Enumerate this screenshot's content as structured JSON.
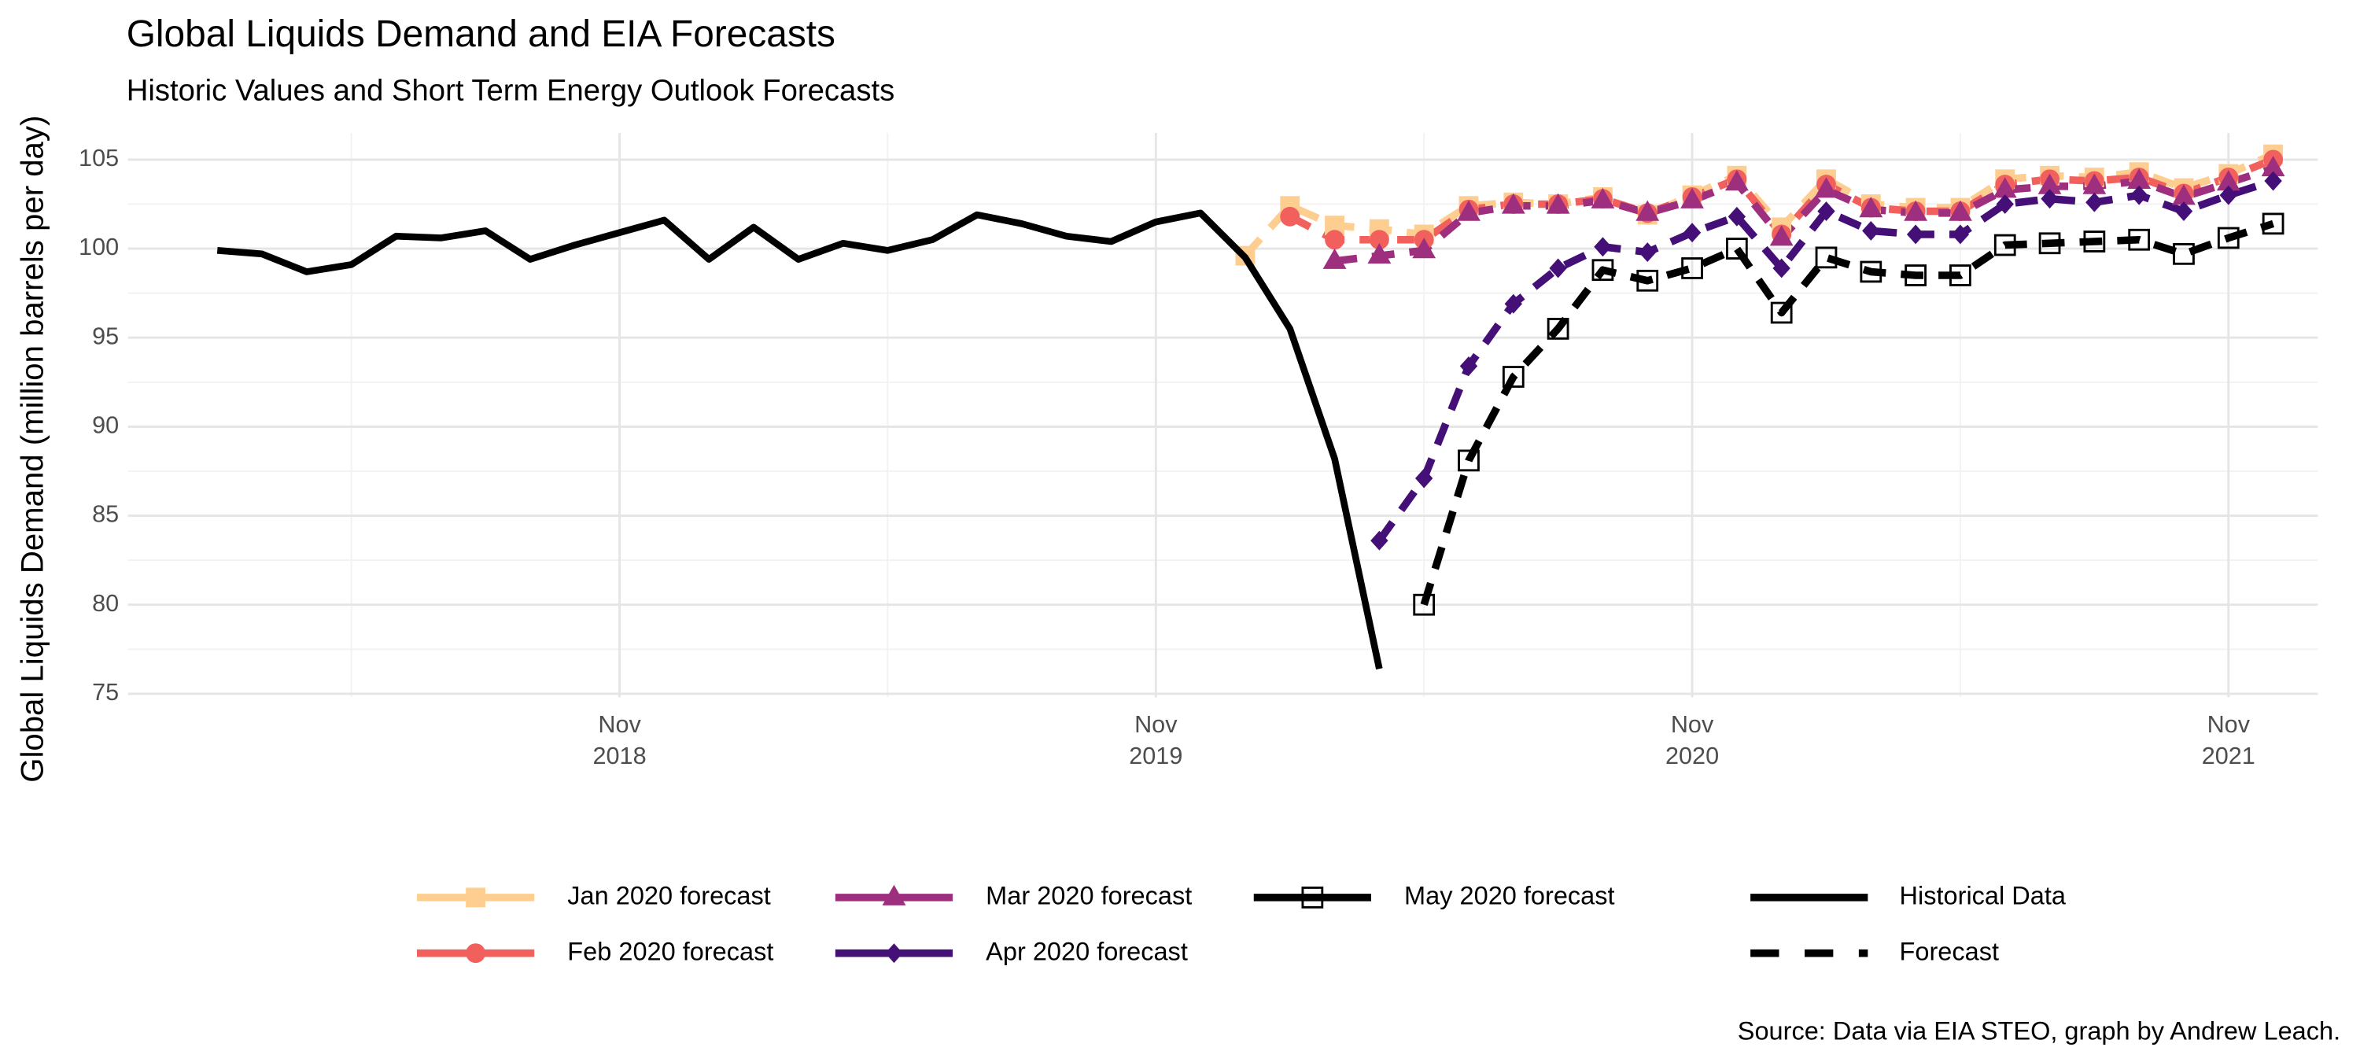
{
  "chart_data": {
    "type": "line",
    "title": "Global Liquids Demand and EIA Forecasts",
    "subtitle": "Historic Values and Short Term Energy Outlook Forecasts",
    "y_label": "Global Liquids Demand (million barrels per day)",
    "caption": "Source: Data via EIA STEO, graph by Andrew Leach.",
    "x": [
      "2018-02",
      "2018-03",
      "2018-04",
      "2018-05",
      "2018-06",
      "2018-07",
      "2018-08",
      "2018-09",
      "2018-10",
      "2018-11",
      "2018-12",
      "2019-01",
      "2019-02",
      "2019-03",
      "2019-04",
      "2019-05",
      "2019-06",
      "2019-07",
      "2019-08",
      "2019-09",
      "2019-10",
      "2019-11",
      "2019-12",
      "2020-01",
      "2020-02",
      "2020-03",
      "2020-04",
      "2020-05",
      "2020-06",
      "2020-07",
      "2020-08",
      "2020-09",
      "2020-10",
      "2020-11",
      "2020-12",
      "2021-01",
      "2021-02",
      "2021-03",
      "2021-04",
      "2021-05",
      "2021-06",
      "2021-07",
      "2021-08",
      "2021-09",
      "2021-10",
      "2021-11",
      "2021-12"
    ],
    "xlim": [
      "2017-12",
      "2022-01"
    ],
    "xticks": [
      {
        "value": "2018-11",
        "label": "Nov\n2018"
      },
      {
        "value": "2019-11",
        "label": "Nov\n2019"
      },
      {
        "value": "2020-11",
        "label": "Nov\n2020"
      },
      {
        "value": "2021-11",
        "label": "Nov\n2021"
      }
    ],
    "ylim": [
      74.8,
      106.5
    ],
    "yticks": [
      75,
      80,
      85,
      90,
      95,
      100,
      105
    ],
    "grid": true,
    "legend_position": "bottom",
    "historical": {
      "name": "Historical Data",
      "color": "#000000",
      "dash": "solid",
      "values": [
        99.9,
        99.7,
        98.7,
        99.1,
        100.7,
        100.6,
        101.0,
        99.4,
        100.2,
        100.9,
        101.6,
        99.4,
        101.2,
        99.4,
        100.3,
        99.9,
        100.5,
        101.9,
        101.4,
        100.7,
        100.4,
        101.5,
        102.0,
        99.5,
        95.5,
        88.2,
        76.4,
        null,
        null,
        null,
        null,
        null,
        null,
        null,
        null,
        null,
        null,
        null,
        null,
        null,
        null,
        null,
        null,
        null,
        null,
        null,
        null
      ]
    },
    "forecast_style": {
      "name": "Forecast",
      "dash": "dashed"
    },
    "series": [
      {
        "name": "Jan 2020 forecast",
        "color": "#FECE91",
        "marker": "square",
        "values": [
          null,
          null,
          null,
          null,
          null,
          null,
          null,
          null,
          null,
          null,
          null,
          null,
          null,
          null,
          null,
          null,
          null,
          null,
          null,
          null,
          null,
          null,
          null,
          99.6,
          102.4,
          101.3,
          101.1,
          100.8,
          102.4,
          102.6,
          102.5,
          102.9,
          101.9,
          103.0,
          104.1,
          101.2,
          103.9,
          102.5,
          102.3,
          102.3,
          103.9,
          104.1,
          104.0,
          104.3,
          103.4,
          104.2,
          105.3
        ]
      },
      {
        "name": "Feb 2020 forecast",
        "color": "#F1605D",
        "marker": "circle",
        "values": [
          null,
          null,
          null,
          null,
          null,
          null,
          null,
          null,
          null,
          null,
          null,
          null,
          null,
          null,
          null,
          null,
          null,
          null,
          null,
          null,
          null,
          null,
          null,
          null,
          101.8,
          100.5,
          100.5,
          100.5,
          102.2,
          102.5,
          102.5,
          102.8,
          102.0,
          102.9,
          103.9,
          100.8,
          103.6,
          102.3,
          102.1,
          102.1,
          103.6,
          103.9,
          103.8,
          104.0,
          103.1,
          104.0,
          105.0
        ]
      },
      {
        "name": "Mar 2020 forecast",
        "color": "#9E2F7F",
        "marker": "triangle",
        "values": [
          null,
          null,
          null,
          null,
          null,
          null,
          null,
          null,
          null,
          null,
          null,
          null,
          null,
          null,
          null,
          null,
          null,
          null,
          null,
          null,
          null,
          null,
          null,
          null,
          null,
          99.3,
          99.6,
          99.9,
          102.0,
          102.4,
          102.4,
          102.7,
          102.0,
          102.7,
          103.7,
          100.6,
          103.3,
          102.2,
          102.0,
          102.0,
          103.3,
          103.5,
          103.5,
          103.8,
          102.9,
          103.7,
          104.5
        ]
      },
      {
        "name": "Apr 2020 forecast",
        "color": "#440F76",
        "marker": "diamond",
        "values": [
          null,
          null,
          null,
          null,
          null,
          null,
          null,
          null,
          null,
          null,
          null,
          null,
          null,
          null,
          null,
          null,
          null,
          null,
          null,
          null,
          null,
          null,
          null,
          null,
          null,
          null,
          83.6,
          87.1,
          93.4,
          96.9,
          98.9,
          100.1,
          99.8,
          100.9,
          101.8,
          98.9,
          102.1,
          101.0,
          100.8,
          100.8,
          102.5,
          102.8,
          102.6,
          103.0,
          102.1,
          103.0,
          103.8
        ]
      },
      {
        "name": "May 2020 forecast",
        "color": "#000000",
        "marker": "open-square",
        "values": [
          null,
          null,
          null,
          null,
          null,
          null,
          null,
          null,
          null,
          null,
          null,
          null,
          null,
          null,
          null,
          null,
          null,
          null,
          null,
          null,
          null,
          null,
          null,
          null,
          null,
          null,
          null,
          80.0,
          88.1,
          92.8,
          95.5,
          98.8,
          98.2,
          98.9,
          100.0,
          96.4,
          99.5,
          98.7,
          98.5,
          98.5,
          100.2,
          100.3,
          100.4,
          100.5,
          99.7,
          100.6,
          101.4
        ]
      }
    ]
  }
}
